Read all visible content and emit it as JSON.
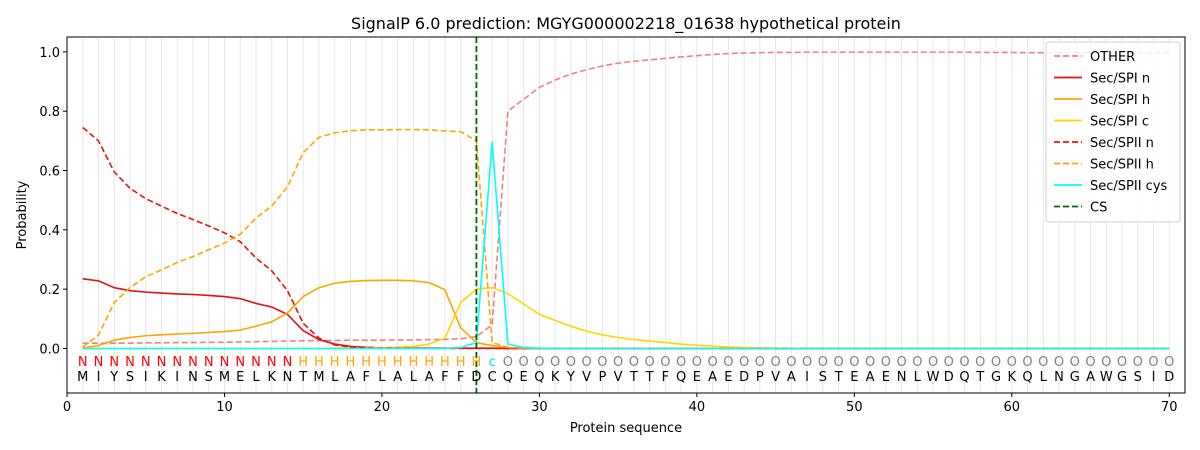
{
  "chart_data": {
    "type": "line",
    "title": "SignalP 6.0 prediction: MGYG000002218_01638 hypothetical protein",
    "xlabel": "Protein sequence",
    "ylabel": "Probability",
    "xlim": [
      0,
      71
    ],
    "ylim": [
      -0.15,
      1.05
    ],
    "x_ticks": [
      0,
      10,
      20,
      30,
      40,
      50,
      60,
      70
    ],
    "y_ticks": [
      0.0,
      0.2,
      0.4,
      0.6,
      0.8,
      1.0
    ],
    "x_tick_labels": [
      "0",
      "10",
      "20",
      "30",
      "40",
      "50",
      "60",
      "70"
    ],
    "y_tick_labels": [
      "0.0",
      "0.2",
      "0.4",
      "0.6",
      "0.8",
      "1.0"
    ],
    "grid": "vertical lines at each residue",
    "legend_position": "top-right",
    "sequence": [
      "M",
      "I",
      "Y",
      "S",
      "I",
      "K",
      "I",
      "N",
      "S",
      "M",
      "E",
      "L",
      "K",
      "N",
      "T",
      "M",
      "L",
      "A",
      "F",
      "L",
      "A",
      "L",
      "A",
      "F",
      "F",
      "D",
      "C",
      "Q",
      "E",
      "Q",
      "K",
      "Y",
      "V",
      "P",
      "V",
      "T",
      "T",
      "F",
      "Q",
      "E",
      "A",
      "E",
      "D",
      "P",
      "V",
      "A",
      "I",
      "S",
      "T",
      "E",
      "A",
      "E",
      "N",
      "L",
      "W",
      "D",
      "Q",
      "T",
      "G",
      "K",
      "Q",
      "L",
      "N",
      "G",
      "A",
      "W",
      "G",
      "S",
      "I",
      "D"
    ],
    "region_labels": [
      "N",
      "N",
      "N",
      "N",
      "N",
      "N",
      "N",
      "N",
      "N",
      "N",
      "N",
      "N",
      "N",
      "N",
      "H",
      "H",
      "H",
      "H",
      "H",
      "H",
      "H",
      "H",
      "H",
      "H",
      "H",
      "H",
      "c",
      "O",
      "O",
      "O",
      "O",
      "O",
      "O",
      "O",
      "O",
      "O",
      "O",
      "O",
      "O",
      "O",
      "O",
      "O",
      "O",
      "O",
      "O",
      "O",
      "O",
      "O",
      "O",
      "O",
      "O",
      "O",
      "O",
      "O",
      "O",
      "O",
      "O",
      "O",
      "O",
      "O",
      "O",
      "O",
      "O",
      "O",
      "O",
      "O",
      "O",
      "O",
      "O",
      "O"
    ],
    "region_colors": {
      "N": "#ff0000",
      "H": "#ffa500",
      "c": "#00e5ee",
      "O": "#808080"
    },
    "cleavage_site": 26,
    "series": [
      {
        "name": "OTHER",
        "color": "#f08080",
        "dash": "dashed",
        "values": [
          0.018,
          0.018,
          0.018,
          0.018,
          0.019,
          0.019,
          0.02,
          0.02,
          0.021,
          0.021,
          0.022,
          0.023,
          0.024,
          0.025,
          0.026,
          0.027,
          0.027,
          0.028,
          0.028,
          0.028,
          0.029,
          0.029,
          0.03,
          0.031,
          0.033,
          0.04,
          0.08,
          0.8,
          0.84,
          0.88,
          0.905,
          0.925,
          0.94,
          0.952,
          0.962,
          0.968,
          0.973,
          0.978,
          0.983,
          0.987,
          0.991,
          0.994,
          0.996,
          0.997,
          0.998,
          0.998,
          0.999,
          0.999,
          0.999,
          0.999,
          0.999,
          0.999,
          0.999,
          0.999,
          0.999,
          0.999,
          0.999,
          0.998,
          0.998,
          0.998,
          0.997,
          0.997,
          0.997,
          0.997,
          0.997,
          0.997,
          0.997,
          0.997,
          0.997,
          0.997
        ]
      },
      {
        "name": "Sec/SPI n",
        "color": "#e8100f",
        "dash": "solid",
        "values": [
          0.235,
          0.228,
          0.205,
          0.195,
          0.19,
          0.187,
          0.184,
          0.182,
          0.179,
          0.175,
          0.168,
          0.152,
          0.14,
          0.115,
          0.06,
          0.03,
          0.015,
          0.007,
          0.004,
          0.002,
          0.001,
          0.001,
          0.001,
          0.001,
          0.001,
          0.001,
          0.001,
          0,
          0,
          0,
          0,
          0,
          0,
          0,
          0,
          0,
          0,
          0,
          0,
          0,
          0,
          0,
          0,
          0,
          0,
          0,
          0,
          0,
          0,
          0,
          0,
          0,
          0,
          0,
          0,
          0,
          0,
          0,
          0,
          0,
          0,
          0,
          0,
          0,
          0,
          0,
          0,
          0,
          0,
          0
        ]
      },
      {
        "name": "Sec/SPI h",
        "color": "#ffa500",
        "dash": "solid",
        "values": [
          0.002,
          0.01,
          0.028,
          0.037,
          0.043,
          0.046,
          0.049,
          0.051,
          0.054,
          0.057,
          0.062,
          0.075,
          0.09,
          0.12,
          0.175,
          0.205,
          0.22,
          0.226,
          0.229,
          0.23,
          0.23,
          0.228,
          0.222,
          0.198,
          0.07,
          0.02,
          0.01,
          0.003,
          0.001,
          0,
          0,
          0,
          0,
          0,
          0,
          0,
          0,
          0,
          0,
          0,
          0,
          0,
          0,
          0,
          0,
          0,
          0,
          0,
          0,
          0,
          0,
          0,
          0,
          0,
          0,
          0,
          0,
          0,
          0,
          0,
          0,
          0,
          0,
          0,
          0,
          0,
          0,
          0,
          0,
          0
        ]
      },
      {
        "name": "Sec/SPI c",
        "color": "#ffd700",
        "dash": "solid",
        "values": [
          0,
          0,
          0,
          0,
          0,
          0,
          0,
          0,
          0,
          0,
          0,
          0,
          0,
          0,
          0,
          0,
          0.001,
          0.001,
          0.002,
          0.003,
          0.004,
          0.007,
          0.015,
          0.035,
          0.155,
          0.2,
          0.205,
          0.185,
          0.15,
          0.115,
          0.095,
          0.075,
          0.058,
          0.046,
          0.037,
          0.03,
          0.025,
          0.02,
          0.015,
          0.011,
          0.008,
          0.005,
          0.003,
          0.002,
          0.001,
          0.001,
          0,
          0,
          0,
          0,
          0,
          0,
          0,
          0,
          0,
          0,
          0,
          0,
          0,
          0,
          0,
          0,
          0,
          0,
          0,
          0,
          0,
          0,
          0,
          0
        ]
      },
      {
        "name": "Sec/SPII n",
        "color": "#e8100f",
        "dash": "dashed",
        "values": [
          0.745,
          0.7,
          0.595,
          0.54,
          0.505,
          0.48,
          0.455,
          0.435,
          0.413,
          0.39,
          0.36,
          0.305,
          0.262,
          0.195,
          0.085,
          0.035,
          0.012,
          0.005,
          0.002,
          0.001,
          0.001,
          0.001,
          0.001,
          0,
          0,
          0,
          0,
          0,
          0,
          0,
          0,
          0,
          0,
          0,
          0,
          0,
          0,
          0,
          0,
          0,
          0,
          0,
          0,
          0,
          0,
          0,
          0,
          0,
          0,
          0,
          0,
          0,
          0,
          0,
          0,
          0,
          0,
          0,
          0,
          0,
          0,
          0,
          0,
          0,
          0,
          0,
          0,
          0,
          0,
          0
        ]
      },
      {
        "name": "Sec/SPII h",
        "color": "#ffa500",
        "dash": "dashed",
        "values": [
          0.005,
          0.045,
          0.155,
          0.205,
          0.242,
          0.265,
          0.29,
          0.31,
          0.333,
          0.355,
          0.385,
          0.44,
          0.48,
          0.545,
          0.66,
          0.712,
          0.727,
          0.734,
          0.737,
          0.737,
          0.738,
          0.738,
          0.737,
          0.733,
          0.731,
          0.7,
          0.02,
          0.004,
          0.001,
          0,
          0,
          0,
          0,
          0,
          0,
          0,
          0,
          0,
          0,
          0,
          0,
          0,
          0,
          0,
          0,
          0,
          0,
          0,
          0,
          0,
          0,
          0,
          0,
          0,
          0,
          0,
          0,
          0,
          0,
          0,
          0,
          0,
          0,
          0,
          0,
          0,
          0,
          0,
          0,
          0
        ]
      },
      {
        "name": "Sec/SPII cys",
        "color": "#00ffff",
        "dash": "solid",
        "values": [
          0,
          0,
          0,
          0,
          0,
          0,
          0,
          0,
          0,
          0,
          0,
          0,
          0,
          0,
          0,
          0,
          0,
          0,
          0,
          0,
          0,
          0,
          0,
          0,
          0.003,
          0.02,
          0.695,
          0.015,
          0.003,
          0.001,
          0,
          0,
          0,
          0,
          0,
          0,
          0,
          0,
          0,
          0,
          0,
          0,
          0,
          0,
          0,
          0,
          0,
          0,
          0,
          0,
          0,
          0,
          0,
          0,
          0,
          0,
          0,
          0,
          0,
          0,
          0,
          0,
          0,
          0,
          0,
          0,
          0,
          0,
          0,
          0
        ]
      },
      {
        "name": "CS",
        "color": "#006400",
        "dash": "dashed",
        "x": 26
      }
    ]
  }
}
